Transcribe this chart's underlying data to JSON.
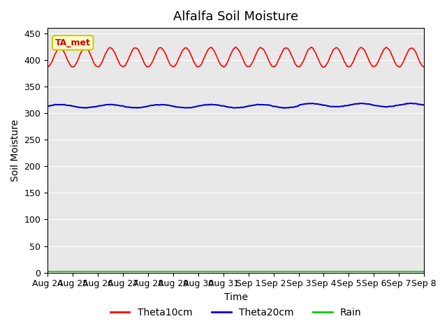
{
  "title": "Alfalfa Soil Moisture",
  "xlabel": "Time",
  "ylabel": "Soil Moisture",
  "ylim": [
    0,
    460
  ],
  "yticks": [
    0,
    50,
    100,
    150,
    200,
    250,
    300,
    350,
    400,
    450
  ],
  "x_labels": [
    "Aug 24",
    "Aug 25",
    "Aug 26",
    "Aug 27",
    "Aug 28",
    "Aug 29",
    "Aug 30",
    "Aug 31",
    "Sep 1",
    "Sep 2",
    "Sep 3",
    "Sep 4",
    "Sep 5",
    "Sep 6",
    "Sep 7",
    "Sep 8"
  ],
  "theta10_color": "#FF0000",
  "theta20_color": "#0000CC",
  "rain_color": "#00CC00",
  "theta10_base": 405,
  "theta10_amp": 18,
  "theta20_base": 313,
  "theta20_variation": 3,
  "rain_base": 2,
  "bg_color": "#E8E8E8",
  "legend_labels": [
    "Theta10cm",
    "Theta20cm",
    "Rain"
  ],
  "annotation_text": "TA_met",
  "annotation_bg": "#FFFFCC",
  "annotation_border": "#CCCC00"
}
